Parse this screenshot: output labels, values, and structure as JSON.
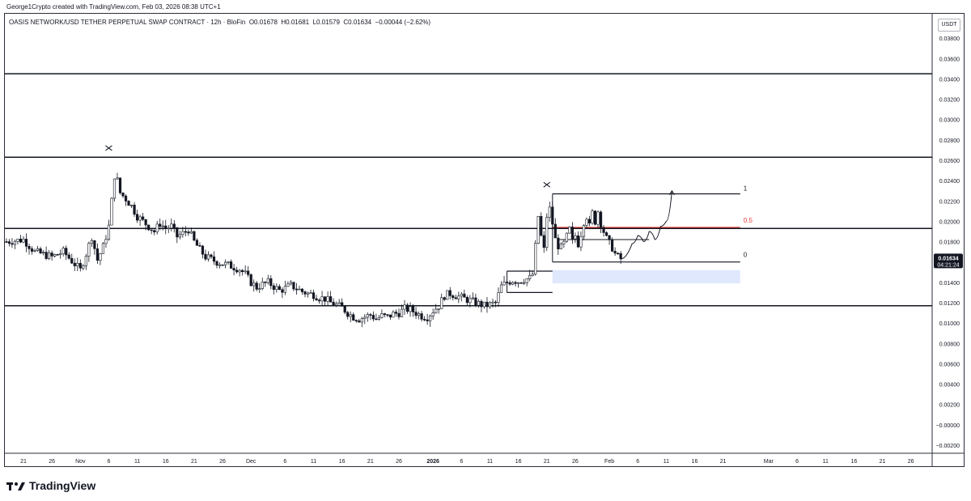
{
  "credit": "George1Crypto created with TradingView.com, Feb 03, 2026 08:38 UTC+1",
  "legend": {
    "symbol": "OASIS NETWORK/USD TETHER PERPETUAL SWAP CONTRACT · 12h · BloFin",
    "open": "O0.01678",
    "high": "H0.01681",
    "low": "L0.01579",
    "close": "C0.01634",
    "change": "−0.00044 (−2.62%)"
  },
  "currency": "USDT",
  "price_label": {
    "price": "0.01634",
    "countdown": "04:21:24"
  },
  "brand": "TradingView",
  "colors": {
    "candle": "#131722",
    "red_level": "#e53935",
    "zone": "#dfe8fd",
    "axis_text": "#131722"
  },
  "chart_data": {
    "type": "candlestick",
    "y_ticks": [
      "0.03800",
      "0.03600",
      "0.03400",
      "0.03200",
      "0.03000",
      "0.02800",
      "0.02600",
      "0.02400",
      "0.02200",
      "0.02000",
      "0.01800",
      "0.01600",
      "0.01400",
      "0.01200",
      "0.01000",
      "0.00800",
      "0.00600",
      "0.00400",
      "0.00200",
      "−0.00000",
      "−0.00200"
    ],
    "y_tick_values": [
      0.038,
      0.036,
      0.034,
      0.032,
      0.03,
      0.028,
      0.026,
      0.024,
      0.022,
      0.02,
      0.018,
      0.016,
      0.014,
      0.012,
      0.01,
      0.008,
      0.006,
      0.004,
      0.002,
      0.0,
      -0.002
    ],
    "ylim": [
      -0.0028,
      0.0404
    ],
    "x_ticks": [
      {
        "label": "21",
        "day": -72
      },
      {
        "label": "26",
        "day": -67
      },
      {
        "label": "Nov",
        "day": -62
      },
      {
        "label": "6",
        "day": -57
      },
      {
        "label": "11",
        "day": -52
      },
      {
        "label": "16",
        "day": -47
      },
      {
        "label": "21",
        "day": -42
      },
      {
        "label": "26",
        "day": -37
      },
      {
        "label": "Dec",
        "day": -32
      },
      {
        "label": "6",
        "day": -26
      },
      {
        "label": "11",
        "day": -21
      },
      {
        "label": "16",
        "day": -16
      },
      {
        "label": "21",
        "day": -11
      },
      {
        "label": "26",
        "day": -6
      },
      {
        "label": "2026",
        "day": 0
      },
      {
        "label": "6",
        "day": 5
      },
      {
        "label": "11",
        "day": 10
      },
      {
        "label": "16",
        "day": 15
      },
      {
        "label": "21",
        "day": 20
      },
      {
        "label": "26",
        "day": 25
      },
      {
        "label": "Feb",
        "day": 31
      },
      {
        "label": "6",
        "day": 36
      },
      {
        "label": "11",
        "day": 41
      },
      {
        "label": "16",
        "day": 46
      },
      {
        "label": "21",
        "day": 51
      },
      {
        "label": "Mar",
        "day": 59
      },
      {
        "label": "6",
        "day": 64
      },
      {
        "label": "11",
        "day": 69
      },
      {
        "label": "16",
        "day": 74
      },
      {
        "label": "21",
        "day": 79
      },
      {
        "label": "26",
        "day": 84
      }
    ],
    "price_path": [
      [
        -75,
        0.018
      ],
      [
        -72,
        0.0182
      ],
      [
        -70,
        0.017
      ],
      [
        -67,
        0.0165
      ],
      [
        -65,
        0.017
      ],
      [
        -63,
        0.0158
      ],
      [
        -62,
        0.0152
      ],
      [
        -61,
        0.0168
      ],
      [
        -60,
        0.0185
      ],
      [
        -59,
        0.0162
      ],
      [
        -58,
        0.0175
      ],
      [
        -57,
        0.0195
      ],
      [
        -56.5,
        0.022
      ],
      [
        -56,
        0.0245
      ],
      [
        -55.5,
        0.024
      ],
      [
        -55,
        0.0228
      ],
      [
        -54,
        0.0222
      ],
      [
        -53,
        0.0215
      ],
      [
        -52,
        0.0205
      ],
      [
        -51,
        0.02
      ],
      [
        -50,
        0.0195
      ],
      [
        -49,
        0.019
      ],
      [
        -48,
        0.0198
      ],
      [
        -47,
        0.0193
      ],
      [
        -46,
        0.0195
      ],
      [
        -45,
        0.0185
      ],
      [
        -44,
        0.0188
      ],
      [
        -43,
        0.0192
      ],
      [
        -42,
        0.018
      ],
      [
        -41,
        0.0172
      ],
      [
        -40,
        0.0165
      ],
      [
        -38,
        0.016
      ],
      [
        -36,
        0.0157
      ],
      [
        -34,
        0.0153
      ],
      [
        -33,
        0.0148
      ],
      [
        -32,
        0.014
      ],
      [
        -31,
        0.0135
      ],
      [
        -30,
        0.0138
      ],
      [
        -29,
        0.014
      ],
      [
        -28,
        0.0136
      ],
      [
        -27,
        0.0132
      ],
      [
        -26,
        0.0134
      ],
      [
        -25,
        0.0137
      ],
      [
        -24,
        0.0134
      ],
      [
        -23,
        0.0131
      ],
      [
        -22,
        0.0129
      ],
      [
        -21,
        0.0128
      ],
      [
        -20,
        0.0125
      ],
      [
        -19,
        0.0124
      ],
      [
        -18,
        0.012
      ],
      [
        -17,
        0.0118
      ],
      [
        -16,
        0.0115
      ],
      [
        -15,
        0.011
      ],
      [
        -14,
        0.0106
      ],
      [
        -13,
        0.0104
      ],
      [
        -12,
        0.0106
      ],
      [
        -11,
        0.0108
      ],
      [
        -10,
        0.0104
      ],
      [
        -9,
        0.0107
      ],
      [
        -8,
        0.0106
      ],
      [
        -7,
        0.0109
      ],
      [
        -6,
        0.011
      ],
      [
        -5,
        0.0114
      ],
      [
        -4,
        0.0113
      ],
      [
        -3,
        0.011
      ],
      [
        -2,
        0.0107
      ],
      [
        -1,
        0.0106
      ],
      [
        0,
        0.0112
      ],
      [
        1,
        0.0117
      ],
      [
        2,
        0.0127
      ],
      [
        3,
        0.0129
      ],
      [
        4,
        0.0127
      ],
      [
        5,
        0.0125
      ],
      [
        6,
        0.0123
      ],
      [
        7,
        0.0121
      ],
      [
        8,
        0.0119
      ],
      [
        9,
        0.0117
      ],
      [
        10,
        0.0118
      ],
      [
        11,
        0.012
      ],
      [
        12,
        0.0136
      ],
      [
        13,
        0.014
      ],
      [
        14,
        0.0142
      ],
      [
        15,
        0.0141
      ],
      [
        16,
        0.0143
      ],
      [
        17,
        0.0144
      ],
      [
        17.5,
        0.0148
      ],
      [
        18,
        0.0175
      ],
      [
        18.5,
        0.0205
      ],
      [
        19,
        0.0185
      ],
      [
        19.5,
        0.0172
      ],
      [
        20,
        0.0205
      ],
      [
        20.5,
        0.0212
      ],
      [
        21,
        0.0198
      ],
      [
        21.5,
        0.0182
      ],
      [
        22,
        0.0176
      ],
      [
        22.5,
        0.0174
      ],
      [
        23,
        0.0178
      ],
      [
        23.5,
        0.0185
      ],
      [
        24,
        0.0192
      ],
      [
        24.5,
        0.018
      ],
      [
        25,
        0.0186
      ],
      [
        25.5,
        0.0178
      ],
      [
        26,
        0.0188
      ],
      [
        26.5,
        0.02
      ],
      [
        27,
        0.0205
      ],
      [
        27.5,
        0.0195
      ],
      [
        28,
        0.0208
      ],
      [
        28.5,
        0.02
      ],
      [
        29,
        0.021
      ],
      [
        29.5,
        0.0198
      ],
      [
        30,
        0.019
      ],
      [
        30.5,
        0.0183
      ],
      [
        31,
        0.0178
      ],
      [
        31.5,
        0.0174
      ],
      [
        32,
        0.0168
      ],
      [
        32.5,
        0.0165
      ],
      [
        33,
        0.0163
      ]
    ],
    "horizontal_levels": [
      0.0345,
      0.0263,
      0.0193,
      0.0117
    ],
    "range_box": {
      "start_day": 21,
      "end_day": 54,
      "top": 0.0227,
      "bottom": 0.016,
      "mid": 0.0194,
      "labels": [
        "1",
        "0.5",
        "0"
      ]
    },
    "demand_zone": {
      "start_day": 21,
      "end_day": 54,
      "top": 0.0152,
      "bottom": 0.0139
    },
    "small_box": {
      "start_day": 13,
      "end_day": 21,
      "top": 0.0151,
      "bottom": 0.013
    },
    "inner_line": {
      "start_day": 22,
      "end_day": 38,
      "value": 0.0182
    },
    "cross_marks": [
      {
        "day": -57,
        "value": 0.0272
      },
      {
        "day": 20,
        "value": 0.0236
      }
    ],
    "projection": [
      [
        33,
        0.0163
      ],
      [
        35,
        0.0178
      ],
      [
        36,
        0.0186
      ],
      [
        37,
        0.018
      ],
      [
        38,
        0.019
      ],
      [
        39,
        0.0182
      ],
      [
        40,
        0.0195
      ],
      [
        41,
        0.02
      ],
      [
        42,
        0.023
      ]
    ]
  }
}
